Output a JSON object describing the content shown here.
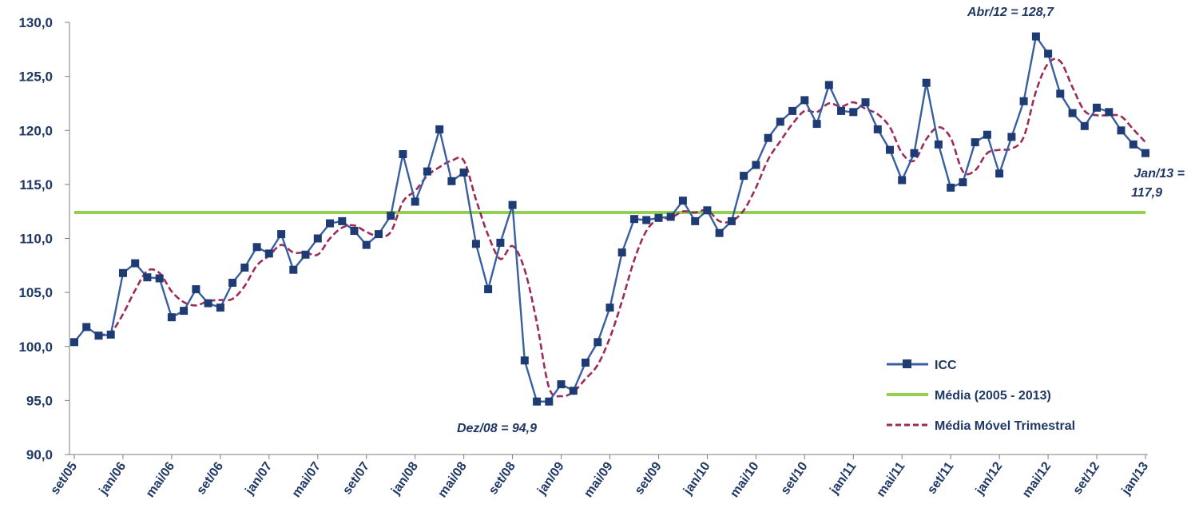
{
  "chart_data": {
    "type": "line",
    "ylim": [
      90,
      130
    ],
    "y_ticks": [
      "90,0",
      "95,0",
      "100,0",
      "105,0",
      "110,0",
      "115,0",
      "120,0",
      "125,0",
      "130,0"
    ],
    "x_tick_labels": [
      "set/05",
      "jan/06",
      "mai/06",
      "set/06",
      "jan/07",
      "mai/07",
      "set/07",
      "jan/08",
      "mai/08",
      "set/08",
      "jan/09",
      "mai/09",
      "set/09",
      "jan/10",
      "mai/10",
      "set/10",
      "jan/11",
      "mai/11",
      "set/11",
      "jan/12",
      "mai/12",
      "set/12",
      "jan/13"
    ],
    "grid": false,
    "legend_position": "bottom-right",
    "colors": {
      "icc": "#3a5fa0",
      "icc_marker": "#1f3b73",
      "media": "#92d050",
      "movel": "#9b2c5a",
      "text": "#1f3864"
    },
    "series": [
      {
        "name": "ICC",
        "values": [
          100.4,
          101.8,
          101.0,
          101.1,
          106.8,
          107.7,
          106.4,
          106.3,
          102.7,
          103.3,
          105.3,
          104.0,
          103.6,
          105.9,
          107.3,
          109.2,
          108.6,
          110.4,
          107.1,
          108.5,
          110.0,
          111.4,
          111.6,
          110.7,
          109.4,
          110.4,
          112.1,
          117.8,
          113.4,
          116.2,
          120.1,
          115.3,
          116.1,
          109.5,
          105.3,
          109.6,
          113.1,
          98.7,
          94.9,
          94.9,
          96.5,
          95.9,
          98.5,
          100.4,
          103.6,
          108.7,
          111.8,
          111.7,
          111.9,
          112.0,
          113.5,
          111.6,
          112.6,
          110.5,
          111.6,
          115.8,
          116.8,
          119.3,
          120.8,
          121.8,
          122.8,
          120.6,
          124.2,
          121.8,
          121.7,
          122.6,
          120.1,
          118.2,
          115.4,
          117.9,
          124.4,
          118.7,
          114.7,
          115.2,
          118.9,
          119.6,
          116.0,
          119.4,
          122.7,
          128.7,
          127.1,
          123.4,
          121.6,
          120.4,
          122.1,
          121.7,
          120.0,
          118.7,
          117.9
        ]
      },
      {
        "name": "Média (2005 - 2013)",
        "value": 112.4
      },
      {
        "name": "Média Móvel Trimestral",
        "values": [
          null,
          null,
          101.1,
          101.3,
          103.0,
          105.2,
          107.0,
          106.8,
          105.1,
          104.1,
          103.8,
          104.2,
          104.3,
          104.4,
          105.6,
          107.5,
          108.4,
          109.4,
          108.7,
          108.7,
          108.5,
          110.0,
          111.0,
          111.2,
          110.6,
          110.2,
          110.6,
          113.4,
          114.4,
          115.8,
          116.6,
          117.2,
          117.2,
          113.6,
          110.3,
          108.1,
          109.3,
          107.1,
          102.2,
          96.2,
          95.4,
          95.8,
          97.0,
          98.3,
          100.8,
          104.2,
          108.0,
          110.7,
          111.8,
          111.9,
          112.5,
          112.4,
          112.6,
          111.6,
          111.6,
          112.6,
          114.7,
          117.3,
          119.0,
          120.6,
          121.8,
          121.7,
          122.5,
          122.2,
          122.6,
          122.0,
          121.5,
          120.3,
          117.9,
          117.2,
          119.2,
          120.3,
          119.3,
          116.2,
          116.3,
          117.9,
          118.2,
          118.3,
          119.4,
          123.6,
          126.2,
          126.4,
          124.0,
          121.8,
          121.4,
          121.4,
          121.3,
          120.1,
          118.9
        ]
      }
    ],
    "annotations": [
      {
        "text": "Abr/12 = 128,7",
        "index": 79,
        "value": 128.7
      },
      {
        "text": "Dez/08 = 94,9",
        "index": 39,
        "value": 94.9
      },
      {
        "text": "Jan/13 =",
        "text2": "117,9",
        "index": 88,
        "value": 117.9
      }
    ]
  }
}
